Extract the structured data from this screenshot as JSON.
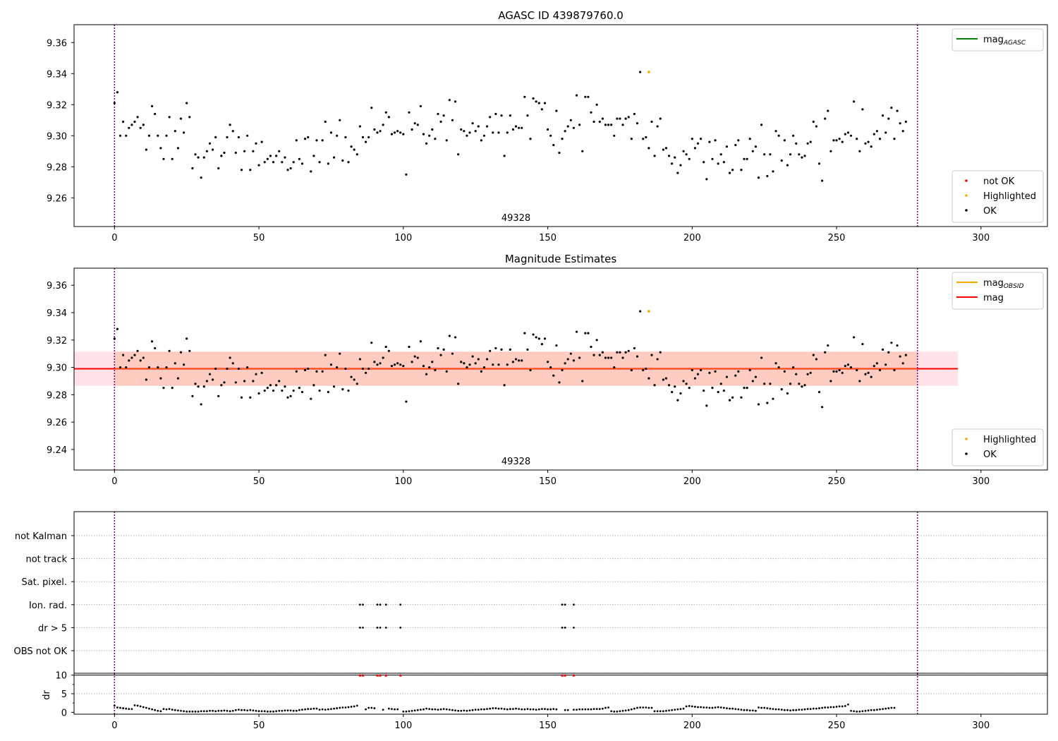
{
  "colors": {
    "ok": "#000000",
    "not_ok": "#ff0000",
    "highlighted": "#ffa500",
    "mag_agasc": "#008000",
    "mag_obsid": "#ffa500",
    "mag": "#ff0000",
    "obs_line": "#800080",
    "obs_line_dash": "#0000ff",
    "band_outer": "#ffc0cb",
    "band_inner": "#ffa07a",
    "grid": "#b0b0b0",
    "limit_line": "#000000"
  },
  "chart_data": [
    {
      "id": "top",
      "type": "scatter",
      "title": "AGASC ID 439879760.0",
      "xlim": [
        -14,
        323
      ],
      "ylim": [
        9.2415,
        9.3715
      ],
      "xticks": [
        0,
        50,
        100,
        150,
        200,
        250,
        300
      ],
      "yticks": [
        9.26,
        9.28,
        9.3,
        9.32,
        9.34,
        9.36
      ],
      "vlines": [
        0,
        278
      ],
      "obsid_label": "49328",
      "obsid_label_x": 139,
      "legend_upper": [
        {
          "label": "mag",
          "sub": "AGASC",
          "kind": "line",
          "color": "mag_agasc"
        }
      ],
      "legend_lower": [
        {
          "label": "not OK",
          "kind": "dot",
          "color": "not_ok"
        },
        {
          "label": "Highlighted",
          "kind": "dot",
          "color": "highlighted"
        },
        {
          "label": "OK",
          "kind": "dot",
          "color": "ok"
        }
      ]
    },
    {
      "id": "mid",
      "type": "scatter",
      "title": "Magnitude Estimates",
      "xlim": [
        -14,
        323
      ],
      "ylim": [
        9.225,
        9.3725
      ],
      "xticks": [
        0,
        50,
        100,
        150,
        200,
        250,
        300
      ],
      "yticks": [
        9.24,
        9.26,
        9.28,
        9.3,
        9.32,
        9.34,
        9.36
      ],
      "vlines": [
        0,
        278
      ],
      "obsid_label": "49328",
      "obsid_label_x": 139,
      "mag_line": {
        "y": 9.299,
        "x": [
          -14,
          292
        ]
      },
      "band_outer": {
        "y": [
          9.2865,
          9.3115
        ],
        "x": [
          -14,
          292
        ]
      },
      "band_inner": {
        "y": [
          9.2865,
          9.3115
        ],
        "x": [
          0,
          278
        ]
      },
      "legend_upper": [
        {
          "label": "mag",
          "sub": "OBSID",
          "kind": "line",
          "color": "mag_obsid"
        },
        {
          "label": "mag",
          "kind": "line",
          "color": "mag"
        }
      ],
      "legend_lower": [
        {
          "label": "Highlighted",
          "kind": "dot",
          "color": "highlighted"
        },
        {
          "label": "OK",
          "kind": "dot",
          "color": "ok"
        }
      ]
    },
    {
      "id": "flags",
      "type": "scatter",
      "xlim": [
        -14,
        323
      ],
      "flag_labels": [
        "not Kalman",
        "not track",
        "Sat. pixel.",
        "Ion. rad.",
        "dr > 5",
        "OBS not OK"
      ],
      "flag_points": {
        "Ion. rad.": [
          85,
          86,
          91,
          92,
          94,
          99,
          155,
          156,
          159
        ],
        "dr > 5": [
          85,
          86,
          91,
          92,
          94,
          99,
          155,
          156,
          159
        ]
      },
      "vlines": [
        0,
        278
      ]
    },
    {
      "id": "dr",
      "type": "scatter",
      "ylabel": "dr",
      "xlim": [
        -14,
        323
      ],
      "ylim": [
        -0.5,
        10.5
      ],
      "xticks": [
        0,
        50,
        100,
        150,
        200,
        250,
        300
      ],
      "yticks": [
        0,
        5,
        10
      ],
      "capped_x": [
        85,
        86,
        91,
        92,
        94,
        99,
        155,
        156,
        159
      ],
      "limit_y": 10,
      "vlines": [
        0,
        278
      ]
    }
  ],
  "series": {
    "mag_x_start": 0,
    "mag": [
      9.321,
      9.328,
      9.3,
      9.309,
      9.3,
      9.305,
      9.307,
      9.309,
      9.312,
      9.305,
      9.307,
      9.291,
      9.3,
      9.319,
      9.314,
      9.3,
      9.292,
      9.285,
      9.3,
      9.312,
      9.285,
      9.303,
      9.292,
      9.311,
      9.302,
      9.321,
      9.312,
      9.279,
      9.288,
      9.286,
      9.273,
      9.286,
      9.29,
      9.295,
      9.291,
      9.299,
      9.279,
      9.287,
      9.289,
      9.299,
      9.307,
      9.303,
      9.289,
      9.299,
      9.278,
      9.29,
      9.3,
      9.278,
      9.29,
      9.295,
      9.281,
      9.296,
      9.283,
      9.285,
      9.287,
      9.283,
      9.287,
      9.29,
      9.283,
      9.286,
      9.278,
      9.279,
      9.283,
      9.297,
      9.285,
      9.282,
      9.298,
      9.299,
      9.277,
      9.287,
      9.297,
      9.283,
      9.297,
      9.309,
      9.282,
      9.302,
      9.286,
      9.3,
      9.31,
      9.284,
      9.299,
      9.283,
      9.293,
      9.291,
      9.288,
      9.306,
      9.299,
      9.296,
      9.299,
      9.318,
      9.304,
      9.302,
      9.303,
      9.307,
      9.315,
      9.312,
      9.301,
      9.302,
      9.303,
      9.302,
      9.301,
      9.275,
      9.315,
      9.304,
      9.308,
      9.307,
      9.319,
      9.301,
      9.295,
      9.3,
      9.304,
      9.298,
      9.314,
      9.309,
      9.313,
      9.297,
      9.323,
      9.31,
      9.322,
      9.288,
      9.304,
      9.303,
      9.3,
      9.302,
      9.308,
      9.303,
      9.306,
      9.297,
      9.3,
      9.306,
      9.312,
      9.302,
      9.314,
      9.302,
      9.313,
      9.287,
      9.302,
      9.313,
      9.304,
      9.306,
      9.305,
      9.305,
      9.325,
      9.313,
      9.298,
      9.324,
      9.322,
      9.321,
      9.317,
      9.321,
      9.304,
      9.3,
      9.294,
      9.316,
      9.289,
      9.298,
      9.303,
      9.306,
      9.31,
      9.305,
      9.326,
      9.307,
      9.29,
      9.325,
      9.325,
      9.315,
      9.309,
      9.32,
      9.309,
      9.311,
      9.307,
      9.307,
      9.307,
      9.3,
      9.311,
      9.311,
      9.307,
      9.311,
      9.312,
      9.298,
      9.314,
      9.308,
      9.341,
      9.298,
      9.299,
      9.292,
      9.309,
      9.287,
      9.306,
      9.311,
      9.291,
      9.292,
      9.287,
      9.282,
      9.286,
      9.276,
      9.281,
      9.29,
      9.288,
      9.285,
      9.298,
      9.292,
      9.295,
      9.298,
      9.283,
      9.272,
      9.296,
      9.285,
      9.297,
      9.282,
      9.288,
      9.283,
      9.293,
      9.276,
      9.278,
      9.294,
      9.297,
      9.278,
      9.285,
      9.285,
      9.298,
      9.29,
      9.293,
      9.273,
      9.307,
      9.288,
      9.274,
      9.288,
      9.277,
      9.303,
      9.3,
      9.284,
      9.297,
      9.281,
      9.288,
      9.3,
      9.295,
      9.288,
      9.286,
      9.287,
      9.295,
      9.296,
      9.309,
      9.306,
      9.282,
      9.271,
      9.311,
      9.316,
      9.29,
      9.297,
      9.297,
      9.298,
      9.296,
      9.301,
      9.302,
      9.3,
      9.322,
      9.298,
      9.29,
      9.317,
      9.295,
      9.296,
      9.293,
      9.301,
      9.303,
      9.298,
      9.313,
      9.302,
      9.311,
      9.318,
      9.298,
      9.316,
      9.308,
      9.303,
      9.309
    ],
    "highlighted": [
      {
        "x": 185,
        "y": 9.341
      }
    ],
    "dr": [
      1.8,
      1.3,
      1.2,
      1.1,
      1.0,
      0.9,
      0.9,
      1.9,
      1.8,
      1.6,
      1.4,
      1.2,
      1.0,
      0.8,
      0.6,
      0.4,
      0.3,
      0.9,
      0.8,
      0.9,
      0.7,
      0.6,
      0.5,
      0.4,
      0.3,
      0.2,
      0.2,
      0.2,
      0.2,
      0.2,
      0.3,
      0.3,
      0.3,
      0.4,
      0.4,
      0.3,
      0.4,
      0.4,
      0.5,
      0.4,
      0.3,
      0.4,
      0.6,
      0.7,
      0.6,
      0.6,
      0.5,
      0.6,
      0.5,
      0.4,
      0.3,
      0.3,
      0.3,
      0.2,
      0.2,
      0.2,
      0.3,
      0.4,
      0.4,
      0.5,
      0.5,
      0.5,
      0.4,
      0.4,
      0.6,
      0.7,
      0.8,
      0.9,
      0.9,
      1.0,
      1.0,
      0.7,
      0.8,
      0.7,
      0.8,
      0.9,
      1.0,
      1.1,
      1.2,
      1.3,
      1.3,
      1.4,
      1.5,
      1.6,
      1.8,
      10,
      10,
      0.8,
      1.2,
      1.2,
      1.1,
      10,
      10,
      0.7,
      10,
      1.0,
      0.9,
      0.8,
      0.8,
      10,
      0.2,
      0.2,
      0.3,
      0.4,
      0.5,
      0.6,
      0.7,
      0.8,
      1.0,
      0.9,
      0.8,
      0.8,
      0.7,
      0.8,
      0.9,
      0.8,
      0.7,
      0.6,
      0.5,
      0.4,
      0.4,
      0.5,
      0.4,
      0.5,
      0.6,
      0.7,
      0.7,
      0.8,
      0.8,
      0.9,
      1.0,
      1.1,
      1.1,
      1.0,
      1.0,
      0.9,
      0.8,
      0.9,
      0.9,
      1.0,
      0.9,
      0.8,
      0.8,
      0.9,
      0.8,
      0.8,
      0.7,
      0.8,
      0.9,
      0.9,
      0.8,
      0.8,
      0.9,
      0.8,
      10,
      10,
      0.6,
      0.6,
      10,
      0.7,
      0.7,
      0.8,
      0.8,
      0.8,
      0.8,
      0.8,
      0.9,
      0.9,
      0.9,
      1.0,
      1.2,
      1.3,
      0.3,
      0.2,
      0.2,
      0.3,
      0.4,
      0.5,
      0.6,
      0.8,
      1.0,
      1.2,
      1.3,
      1.3,
      1.3,
      1.2,
      1.2,
      0.3,
      0.3,
      0.3,
      0.3,
      0.4,
      0.5,
      0.6,
      0.7,
      0.8,
      0.9,
      1.0,
      1.6,
      1.7,
      1.6,
      1.5,
      1.4,
      1.4,
      1.3,
      1.3,
      1.2,
      1.2,
      1.3,
      1.4,
      1.3,
      1.2,
      1.1,
      1.0,
      1.0,
      0.9,
      0.8,
      0.7,
      0.6,
      0.6,
      0.5,
      0.5,
      0.4,
      1.3,
      1.2,
      1.2,
      1.1,
      1.0,
      0.9,
      0.8,
      0.8,
      0.7,
      0.6,
      0.6,
      0.5,
      0.6,
      0.6,
      0.7,
      0.7,
      0.8,
      0.9,
      0.9,
      1.0,
      1.0,
      1.1,
      1.2,
      1.3,
      1.3,
      1.4,
      1.4,
      1.5,
      1.6,
      1.6,
      1.7,
      2.1,
      0.4,
      0.3,
      0.2,
      0.2,
      0.3,
      0.4,
      0.5,
      0.6,
      0.6,
      0.7,
      0.8,
      0.9,
      1.0,
      1.1,
      1.2,
      1.2
    ]
  }
}
